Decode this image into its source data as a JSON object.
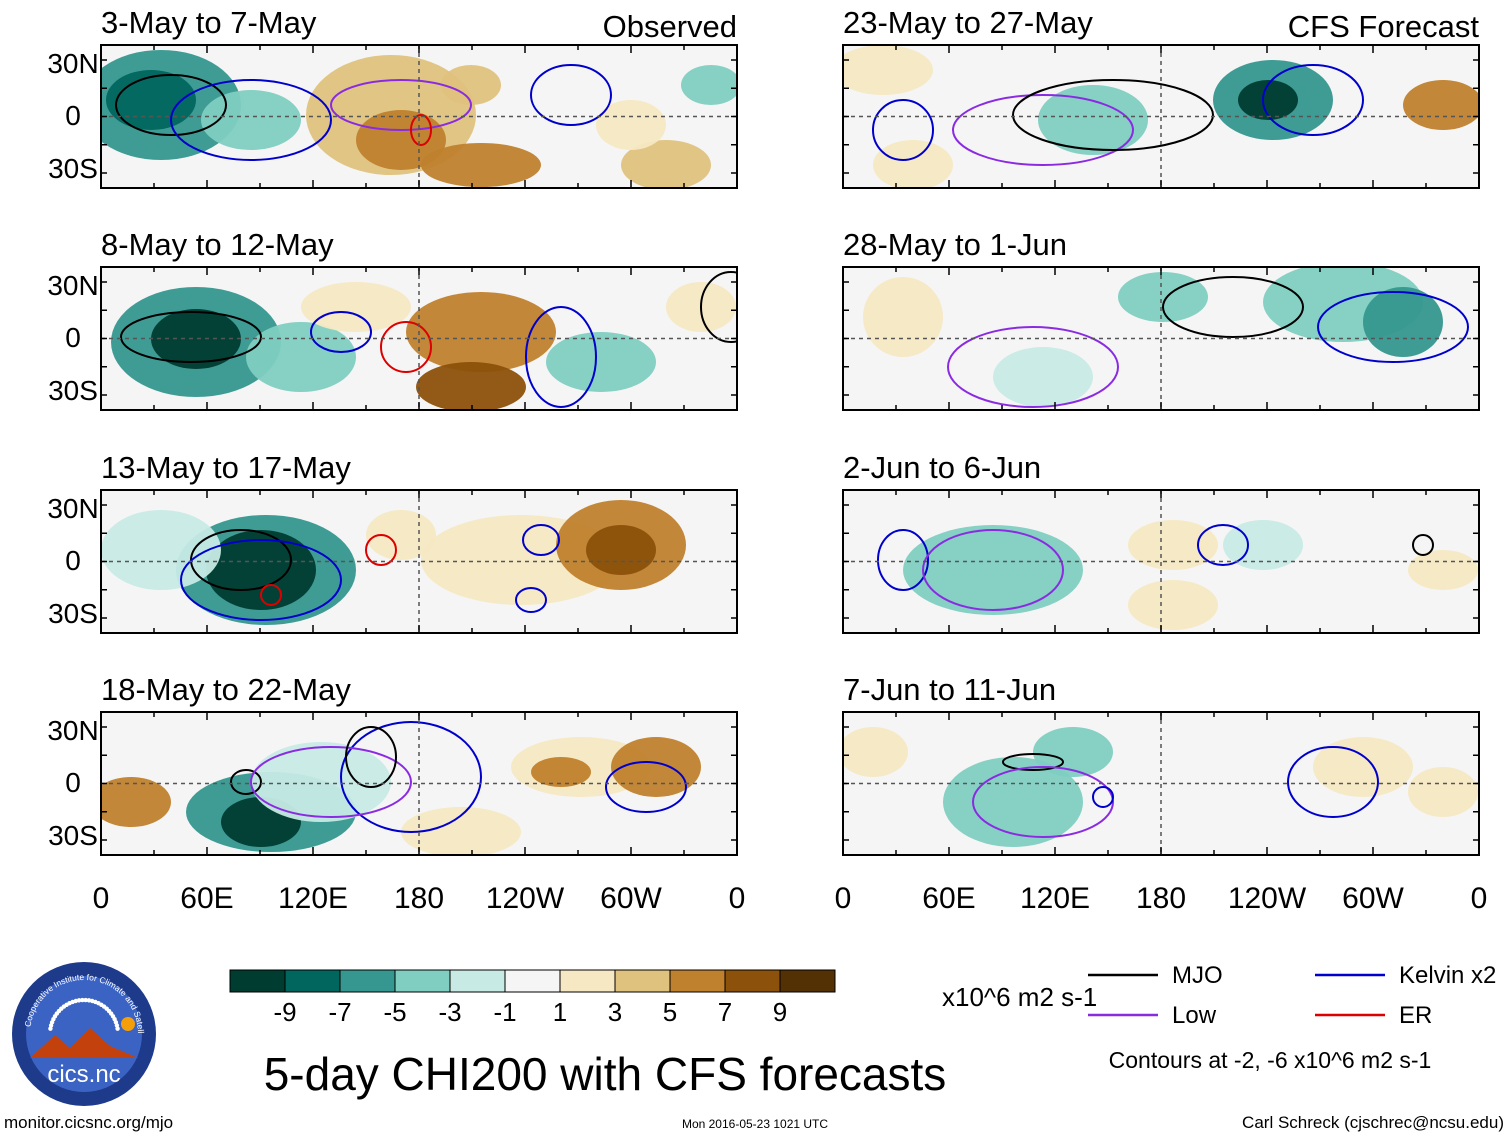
{
  "chart_data": {
    "type": "heatmap",
    "title": "5-day CHI200 with CFS forecasts",
    "variable": "CHI200 anomaly",
    "units": "x10^6 m2 s-1",
    "observed_label": "Observed",
    "forecast_label": "CFS Forecast",
    "lon_ticks": [
      "0",
      "60E",
      "120E",
      "180",
      "120W",
      "60W",
      "0"
    ],
    "lat_ticks": [
      "30N",
      "0",
      "30S"
    ],
    "colorbar": {
      "levels": [
        "-9",
        "-7",
        "-5",
        "-3",
        "-1",
        "1",
        "3",
        "5",
        "7",
        "9"
      ],
      "colors": [
        "#003c30",
        "#01665e",
        "#35978f",
        "#80cdc1",
        "#c7eae5",
        "#f5f5f5",
        "#f6e8c3",
        "#dfc27d",
        "#bf812d",
        "#8c510a",
        "#543005"
      ]
    },
    "panels_observed": [
      {
        "period": "3-May to 7-May"
      },
      {
        "period": "8-May to 12-May"
      },
      {
        "period": "13-May to 17-May"
      },
      {
        "period": "18-May to 22-May"
      }
    ],
    "panels_forecast": [
      {
        "period": "23-May to 27-May"
      },
      {
        "period": "28-May to 1-Jun"
      },
      {
        "period": "2-Jun to 6-Jun"
      },
      {
        "period": "7-Jun to 11-Jun"
      }
    ],
    "legend": [
      {
        "label": "MJO",
        "color": "#000000"
      },
      {
        "label": "Kelvin x2",
        "color": "#0000cc"
      },
      {
        "label": "Low",
        "color": "#8a2be2"
      },
      {
        "label": "ER",
        "color": "#dd0000"
      }
    ],
    "contour_note": "Contours at -2, -6 x10^6 m2 s-1"
  },
  "logo": {
    "arc_text": "Cooperative Institute for Climate and Satellites",
    "name": "cics.nc"
  },
  "footer": {
    "url": "monitor.cicsnc.org/mjo",
    "timestamp": "Mon 2016-05-23 1021 UTC",
    "author": "Carl Schreck (cjschrec@ncsu.edu)"
  }
}
